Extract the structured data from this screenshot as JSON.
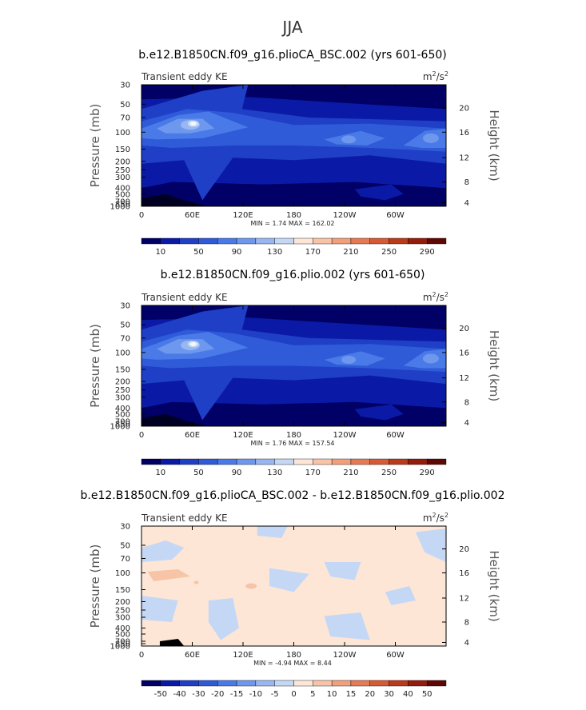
{
  "figure": {
    "title": "JJA",
    "units_base": "m",
    "units_exp1": "2",
    "units_mid": "/s",
    "units_exp2": "2"
  },
  "chart_data": [
    {
      "type": "heatmap",
      "title": "b.e12.B1850CN.f09_g16.plioCA_BSC.002 (yrs 601-650)",
      "variable": "Transient eddy KE",
      "xlabel": "",
      "ylabel": "Pressure (mb)",
      "ylabel_right": "Height (km)",
      "x_ticks": [
        "0",
        "60E",
        "120E",
        "180",
        "120W",
        "60W"
      ],
      "y_ticks": [
        "30",
        "50",
        "70",
        "100",
        "150",
        "200",
        "250",
        "300",
        "400",
        "500",
        "700",
        "850",
        "1000"
      ],
      "y_right_ticks": [
        "20",
        "16",
        "12",
        "8",
        "4"
      ],
      "ylim": [
        1000,
        30
      ],
      "stat_text": "MIN =    1.74   MAX =  162.02",
      "min": 1.74,
      "max": 162.02,
      "colorbar_labels": [
        "10",
        "50",
        "90",
        "130",
        "170",
        "210",
        "250",
        "290"
      ]
    },
    {
      "type": "heatmap",
      "title": "b.e12.B1850CN.f09_g16.plio.002 (yrs 601-650)",
      "variable": "Transient eddy KE",
      "xlabel": "",
      "ylabel": "Pressure (mb)",
      "ylabel_right": "Height (km)",
      "x_ticks": [
        "0",
        "60E",
        "120E",
        "180",
        "120W",
        "60W"
      ],
      "y_ticks": [
        "30",
        "50",
        "70",
        "100",
        "150",
        "200",
        "250",
        "300",
        "400",
        "500",
        "700",
        "850",
        "1000"
      ],
      "y_right_ticks": [
        "20",
        "16",
        "12",
        "8",
        "4"
      ],
      "ylim": [
        1000,
        30
      ],
      "stat_text": "MIN =    1.76   MAX =  157.54",
      "min": 1.76,
      "max": 157.54,
      "colorbar_labels": [
        "10",
        "50",
        "90",
        "130",
        "170",
        "210",
        "250",
        "290"
      ]
    },
    {
      "type": "heatmap",
      "title": "b.e12.B1850CN.f09_g16.plioCA_BSC.002 - b.e12.B1850CN.f09_g16.plio.002",
      "variable": "Transient eddy KE",
      "xlabel": "",
      "ylabel": "Pressure (mb)",
      "ylabel_right": "Height (km)",
      "x_ticks": [
        "0",
        "60E",
        "120E",
        "180",
        "120W",
        "60W"
      ],
      "y_ticks": [
        "30",
        "50",
        "70",
        "100",
        "150",
        "200",
        "250",
        "300",
        "400",
        "500",
        "700",
        "850",
        "1000"
      ],
      "y_right_ticks": [
        "20",
        "16",
        "12",
        "8",
        "4"
      ],
      "ylim": [
        1000,
        30
      ],
      "stat_text": "MIN =   -4.94   MAX =    8.44",
      "min": -4.94,
      "max": 8.44,
      "colorbar_labels": [
        "-50",
        "-40",
        "-30",
        "-20",
        "-15",
        "-10",
        "-5",
        "0",
        "5",
        "10",
        "15",
        "20",
        "30",
        "40",
        "50"
      ]
    }
  ],
  "colorbar_colors": [
    "#000066",
    "#0a1aa6",
    "#1f3fc6",
    "#2f5ad8",
    "#4a7ae8",
    "#6e98ee",
    "#98b7f2",
    "#c4d8f6",
    "#fde6d6",
    "#f8c4a8",
    "#f2a07c",
    "#e67a54",
    "#d85a34",
    "#bb3a1c",
    "#931c0c",
    "#5e0806"
  ],
  "diff_colorbar_colors": [
    "#000066",
    "#0a1aa6",
    "#1f3fc6",
    "#2f5ad8",
    "#4a7ae8",
    "#6e98ee",
    "#98b7f2",
    "#c4d8f6",
    "#fde6d6",
    "#f8c4a8",
    "#f2a07c",
    "#e67a54",
    "#d85a34",
    "#bb3a1c",
    "#931c0c",
    "#5e0806"
  ]
}
